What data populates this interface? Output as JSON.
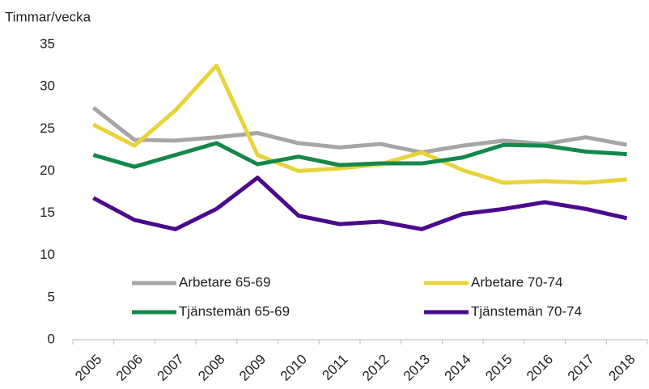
{
  "chart_data": {
    "type": "line",
    "y_label": "Timmar/vecka",
    "categories": [
      "2005",
      "2006",
      "2007",
      "2008",
      "2009",
      "2010",
      "2011",
      "2012",
      "2013",
      "2014",
      "2015",
      "2016",
      "2017",
      "2018"
    ],
    "series": [
      {
        "name": "Arbetare 65-69",
        "color": "#a6a6a6",
        "values": [
          27.5,
          23.7,
          23.6,
          24.0,
          24.5,
          23.3,
          22.8,
          23.2,
          22.2,
          23.0,
          23.6,
          23.2,
          24.0,
          23.1
        ]
      },
      {
        "name": "Arbetare 70-74",
        "color": "#e8d33a",
        "values": [
          25.5,
          23.0,
          27.2,
          32.5,
          21.9,
          20.0,
          20.3,
          20.8,
          22.2,
          20.1,
          18.6,
          18.8,
          18.6,
          19.0
        ]
      },
      {
        "name": "Tjänstemän 65-69",
        "color": "#16884a",
        "values": [
          21.9,
          20.5,
          21.9,
          23.3,
          20.8,
          21.7,
          20.7,
          20.9,
          20.9,
          21.6,
          23.1,
          23.0,
          22.3,
          22.0
        ]
      },
      {
        "name": "Tjänstemän 70-74",
        "color": "#4b0a8c",
        "values": [
          16.8,
          14.2,
          13.1,
          15.5,
          19.2,
          14.7,
          13.7,
          14.0,
          13.1,
          14.9,
          15.5,
          16.3,
          15.5,
          14.4
        ]
      }
    ],
    "ylim": [
      0,
      35
    ],
    "yticks": [
      0,
      5,
      10,
      15,
      20,
      25,
      30,
      35
    ],
    "grid": false
  }
}
